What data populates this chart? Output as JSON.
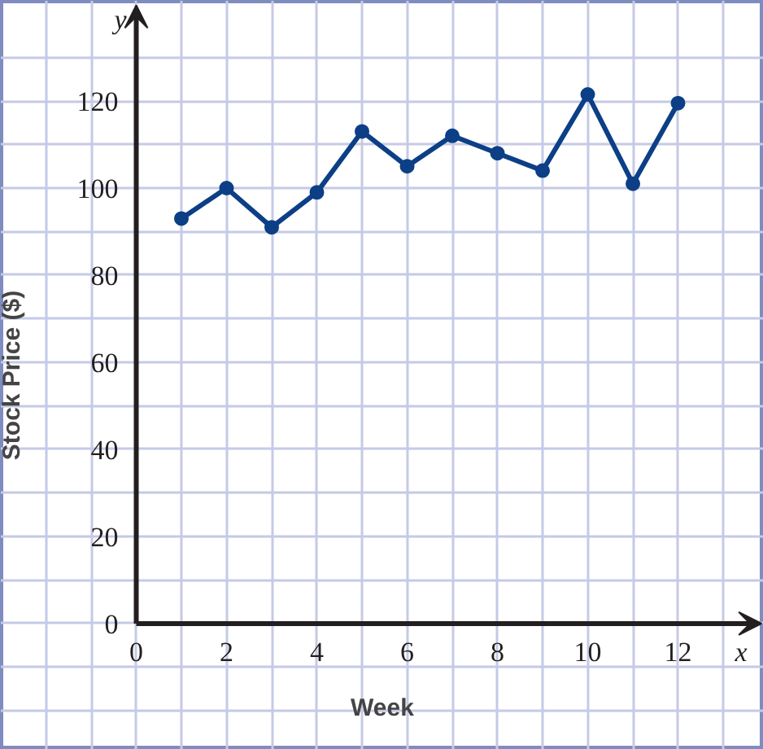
{
  "chart_data": {
    "type": "line",
    "xlabel": "Week",
    "ylabel": "Stock Price ($)",
    "annotations": [
      "x",
      "y"
    ],
    "x": [
      1,
      2,
      3,
      4,
      5,
      6,
      7,
      8,
      9,
      10,
      11,
      12
    ],
    "series": [
      {
        "color": "#0c3f86",
        "values": [
          93,
          100,
          91,
          99,
          113,
          105,
          112,
          108,
          104,
          121.5,
          101,
          119.5
        ]
      }
    ],
    "xlim": [
      -3,
      13.9
    ],
    "ylim": [
      -29,
      143
    ],
    "xticks": [
      {
        "value": -3,
        "label": null
      },
      {
        "value": -2,
        "label": null
      },
      {
        "value": -1,
        "label": null
      },
      0,
      {
        "value": 1,
        "label": null
      },
      2,
      {
        "value": 3,
        "label": null
      },
      4,
      {
        "value": 5,
        "label": null
      },
      6,
      {
        "value": 7,
        "label": null
      },
      8,
      {
        "value": 9,
        "label": null
      },
      10,
      {
        "value": 11,
        "label": null
      },
      12,
      {
        "value": 13,
        "label": null
      }
    ],
    "yticks": [
      {
        "value": -20,
        "label": null
      },
      {
        "value": -10,
        "label": null
      },
      0,
      {
        "value": 10,
        "label": null
      },
      20,
      {
        "value": 30,
        "label": null
      },
      40,
      {
        "value": 50,
        "label": null
      },
      60,
      {
        "value": 70,
        "label": null
      },
      80,
      {
        "value": 90,
        "label": null
      },
      100,
      {
        "value": 110,
        "label": null
      },
      120,
      {
        "value": 130,
        "label": null
      }
    ],
    "grid": true,
    "marker": "circle",
    "line_style": "solid"
  }
}
